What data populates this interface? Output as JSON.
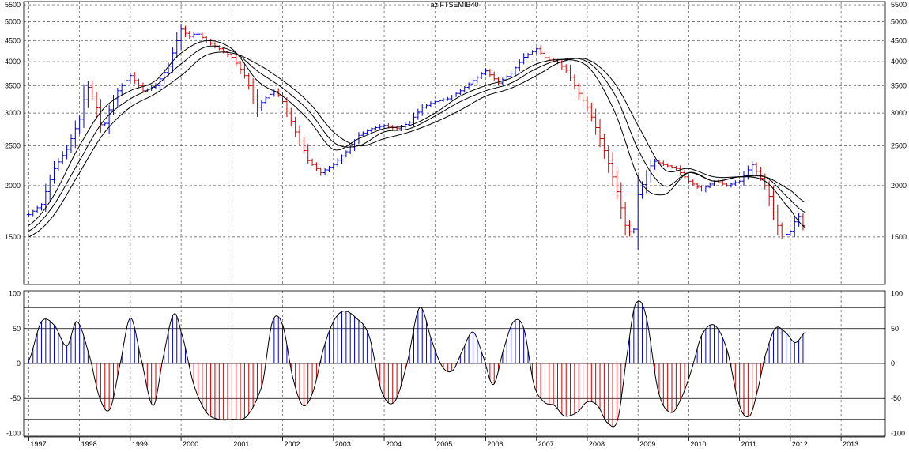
{
  "chart_data": [
    {
      "type": "ohlc",
      "title": "az.FTSEMIB40",
      "scale": "log",
      "grid": true,
      "ylim": [
        1150,
        5600
      ],
      "xlim": [
        1996.9,
        2013.87
      ],
      "y_ticks": [
        5500,
        5000,
        4500,
        4000,
        3500,
        3000,
        2500,
        2000,
        1500
      ],
      "x_ticks": [
        1997,
        1998,
        1999,
        2000,
        2001,
        2002,
        2003,
        2004,
        2005,
        2006,
        2007,
        2008,
        2009,
        2010,
        2011,
        2012,
        2013
      ],
      "colors": {
        "up": "#0000cc",
        "down": "#cc0000",
        "ma": "#000000",
        "grid": "#555555"
      },
      "series": [
        {
          "name": "",
          "type": "close",
          "x": [
            1997.0,
            1997.25,
            1997.5,
            1997.75,
            1998.0,
            1998.15,
            1998.3,
            1998.45,
            1998.6,
            1998.75,
            1999.0,
            1999.25,
            1999.5,
            1999.75,
            2000.0,
            2000.15,
            2000.3,
            2000.5,
            2000.75,
            2001.0,
            2001.25,
            2001.5,
            2001.7,
            2001.85,
            2002.0,
            2002.25,
            2002.5,
            2002.75,
            2003.0,
            2003.15,
            2003.3,
            2003.5,
            2003.75,
            2004.0,
            2004.25,
            2004.5,
            2004.75,
            2005.0,
            2005.25,
            2005.5,
            2005.75,
            2006.0,
            2006.25,
            2006.5,
            2006.75,
            2007.0,
            2007.2,
            2007.4,
            2007.6,
            2007.8,
            2008.0,
            2008.2,
            2008.4,
            2008.6,
            2008.75,
            2008.9,
            2009.0,
            2009.15,
            2009.3,
            2009.5,
            2009.75,
            2010.0,
            2010.25,
            2010.5,
            2010.75,
            2011.0,
            2011.25,
            2011.4,
            2011.55,
            2011.7,
            2011.85,
            2012.0,
            2012.15,
            2012.3
          ],
          "values": [
            1700,
            1800,
            2200,
            2450,
            2900,
            3500,
            3200,
            2700,
            3100,
            3400,
            3700,
            3400,
            3500,
            3900,
            4800,
            4600,
            4700,
            4500,
            4300,
            4100,
            3700,
            3100,
            3300,
            3400,
            3200,
            2700,
            2300,
            2150,
            2250,
            2350,
            2450,
            2650,
            2750,
            2800,
            2750,
            2850,
            3100,
            3200,
            3250,
            3400,
            3600,
            3800,
            3550,
            3750,
            4100,
            4300,
            4050,
            4000,
            3800,
            3400,
            3100,
            2700,
            2300,
            1900,
            1600,
            1500,
            1900,
            2100,
            2300,
            2250,
            2200,
            2050,
            1950,
            2050,
            2000,
            2050,
            2250,
            2100,
            1950,
            1650,
            1500,
            1550,
            1700,
            1550
          ]
        },
        {
          "name": "",
          "type": "moving_average",
          "x": [
            1997.0,
            1997.5,
            1998.0,
            1998.5,
            1999.0,
            1999.5,
            2000.0,
            2000.5,
            2001.0,
            2001.5,
            2002.0,
            2002.5,
            2003.0,
            2003.5,
            2004.0,
            2004.5,
            2005.0,
            2005.5,
            2006.0,
            2006.5,
            2007.0,
            2007.5,
            2008.0,
            2008.5,
            2009.0,
            2009.5,
            2010.0,
            2010.5,
            2011.0,
            2011.5,
            2012.0,
            2012.3
          ],
          "values": [
            1600,
            1900,
            2500,
            3100,
            3400,
            3600,
            4200,
            4500,
            4300,
            3600,
            3300,
            2900,
            2450,
            2600,
            2750,
            2800,
            3000,
            3300,
            3500,
            3650,
            3950,
            4050,
            3900,
            3100,
            2100,
            1900,
            2150,
            2050,
            2100,
            2050,
            1750,
            1580
          ]
        },
        {
          "name": "",
          "type": "moving_average",
          "x": [
            1997.0,
            1997.5,
            1998.0,
            1998.5,
            1999.0,
            1999.5,
            2000.0,
            2000.5,
            2001.0,
            2001.5,
            2002.0,
            2002.5,
            2003.0,
            2003.5,
            2004.0,
            2004.5,
            2005.0,
            2005.5,
            2006.0,
            2006.5,
            2007.0,
            2007.5,
            2008.0,
            2008.5,
            2009.0,
            2009.5,
            2010.0,
            2010.5,
            2011.0,
            2011.5,
            2012.0,
            2012.3
          ],
          "values": [
            1550,
            1800,
            2300,
            2900,
            3250,
            3500,
            3950,
            4350,
            4250,
            3800,
            3450,
            3050,
            2550,
            2500,
            2700,
            2750,
            2950,
            3200,
            3400,
            3550,
            3850,
            4050,
            4000,
            3400,
            2450,
            2000,
            2150,
            2050,
            2100,
            2100,
            1850,
            1720
          ]
        },
        {
          "name": "",
          "type": "moving_average",
          "x": [
            1997.0,
            1997.5,
            1998.0,
            1998.5,
            1999.0,
            1999.5,
            2000.0,
            2000.5,
            2001.0,
            2001.5,
            2002.0,
            2002.5,
            2003.0,
            2003.5,
            2004.0,
            2004.5,
            2005.0,
            2005.5,
            2006.0,
            2006.5,
            2007.0,
            2007.5,
            2008.0,
            2008.5,
            2009.0,
            2009.5,
            2010.0,
            2010.5,
            2011.0,
            2011.5,
            2012.0,
            2012.3
          ],
          "values": [
            1500,
            1700,
            2150,
            2700,
            3100,
            3350,
            3700,
            4150,
            4200,
            3950,
            3600,
            3200,
            2700,
            2500,
            2600,
            2700,
            2850,
            3050,
            3300,
            3450,
            3700,
            4000,
            4050,
            3600,
            2800,
            2200,
            2200,
            2100,
            2100,
            2100,
            1950,
            1820
          ]
        }
      ]
    },
    {
      "type": "bar",
      "scale": "linear",
      "grid": true,
      "ylim": [
        -104,
        104
      ],
      "xlim": [
        1996.9,
        2013.87
      ],
      "y_ticks": [
        100,
        50,
        0,
        -50,
        -100
      ],
      "x_ticks": [
        1997,
        1998,
        1999,
        2000,
        2001,
        2002,
        2003,
        2004,
        2005,
        2006,
        2007,
        2008,
        2009,
        2010,
        2011,
        2012,
        2013
      ],
      "reference_lines": [
        80,
        50,
        0,
        -50,
        -80
      ],
      "colors": {
        "positive": "#0000cc",
        "negative": "#cc0000",
        "line": "#000000"
      },
      "series": [
        {
          "name": "",
          "type": "oscillator",
          "x": [
            1997.0,
            1997.25,
            1997.5,
            1997.75,
            1997.95,
            1998.2,
            1998.4,
            1998.6,
            1998.8,
            1999.0,
            1999.2,
            1999.45,
            1999.65,
            1999.85,
            2000.0,
            2000.25,
            2000.5,
            2000.75,
            2001.0,
            2001.3,
            2001.6,
            2001.8,
            2002.0,
            2002.2,
            2002.4,
            2002.6,
            2002.8,
            2003.0,
            2003.2,
            2003.45,
            2003.7,
            2003.95,
            2004.2,
            2004.45,
            2004.7,
            2004.95,
            2005.15,
            2005.35,
            2005.55,
            2005.75,
            2005.95,
            2006.15,
            2006.35,
            2006.55,
            2006.75,
            2006.95,
            2007.15,
            2007.35,
            2007.55,
            2007.8,
            2008.0,
            2008.2,
            2008.4,
            2008.6,
            2008.8,
            2008.95,
            2009.15,
            2009.4,
            2009.65,
            2009.85,
            2010.05,
            2010.25,
            2010.5,
            2010.75,
            2011.0,
            2011.2,
            2011.35,
            2011.5,
            2011.7,
            2011.9,
            2012.1,
            2012.3
          ],
          "values": [
            5,
            60,
            55,
            25,
            60,
            10,
            -50,
            -65,
            0,
            65,
            10,
            -60,
            10,
            70,
            45,
            -30,
            -70,
            -80,
            -80,
            -75,
            -30,
            60,
            55,
            -20,
            -60,
            -40,
            20,
            60,
            75,
            65,
            40,
            -40,
            -55,
            0,
            80,
            30,
            -5,
            -10,
            20,
            45,
            10,
            -30,
            20,
            60,
            50,
            -30,
            -55,
            -60,
            -75,
            -70,
            -55,
            -60,
            -85,
            -80,
            20,
            85,
            70,
            -40,
            -70,
            -50,
            -10,
            40,
            55,
            20,
            -60,
            -75,
            -40,
            10,
            50,
            45,
            30,
            45
          ]
        }
      ]
    }
  ]
}
